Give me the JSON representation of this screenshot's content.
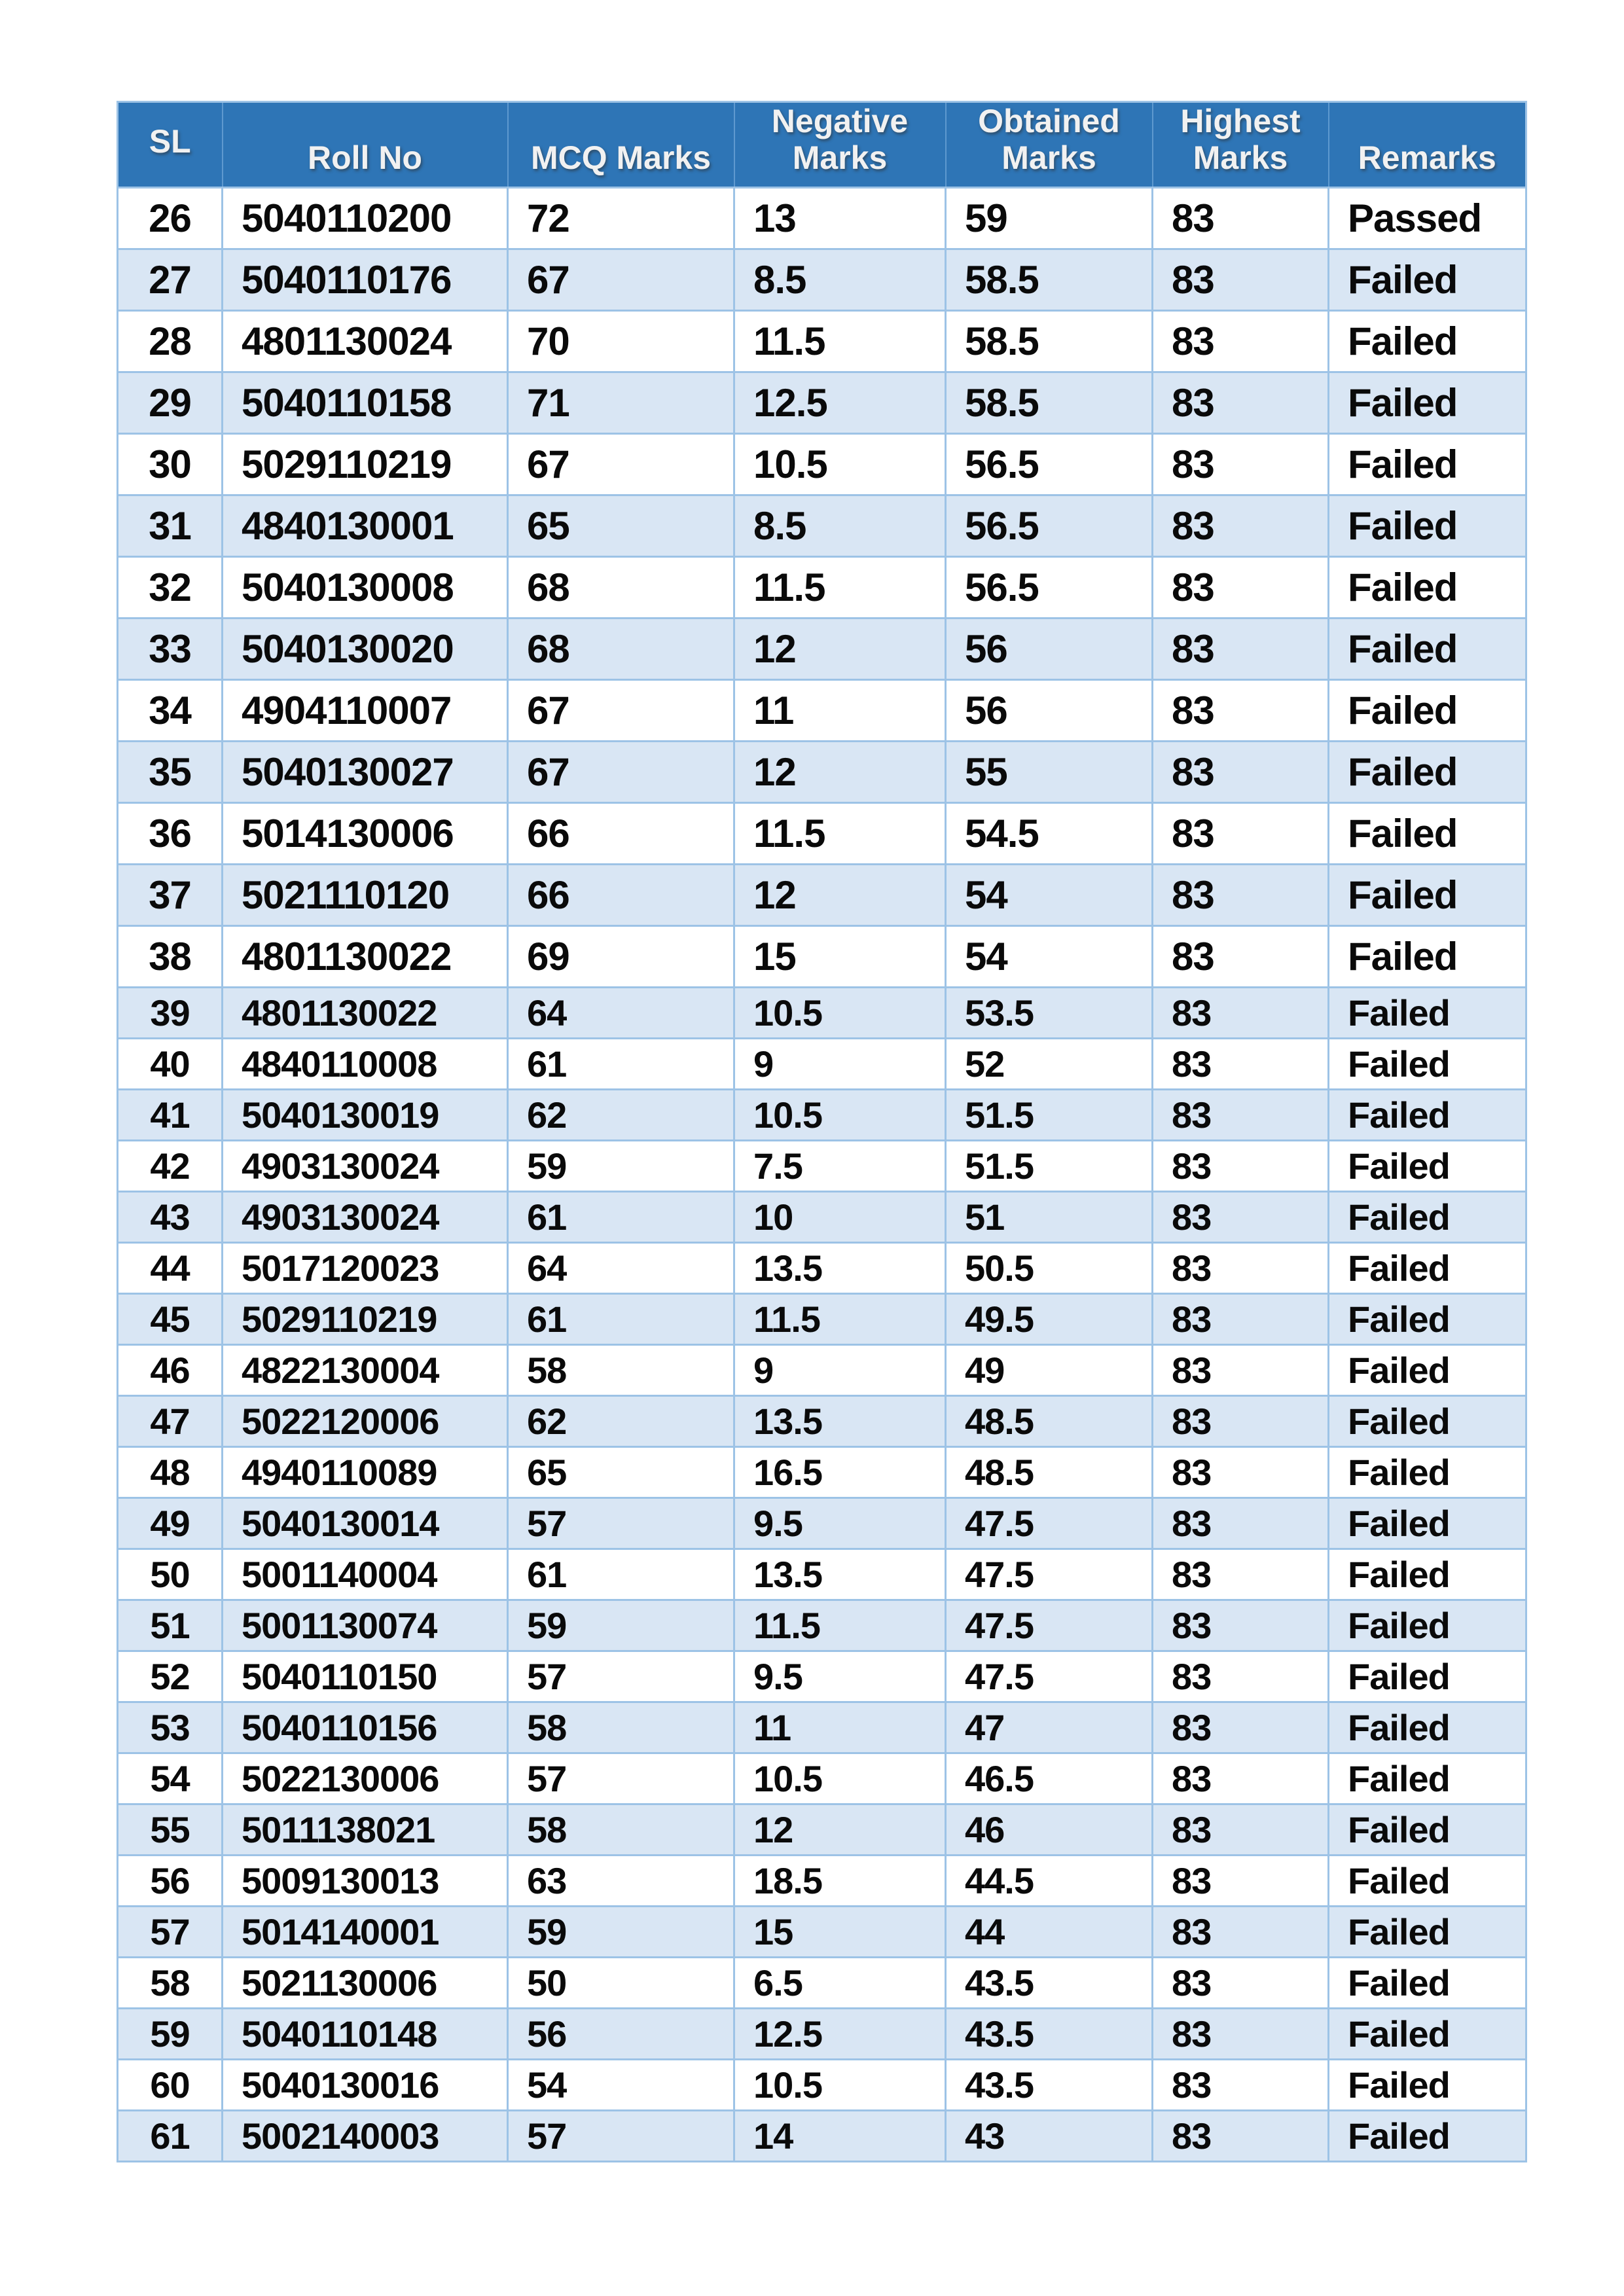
{
  "table": {
    "columns": [
      "SL",
      "Roll No",
      "MCQ Marks",
      "Negative Marks",
      "Obtained Marks",
      "Highest Marks",
      "Remarks"
    ],
    "rows": [
      {
        "sl": 26,
        "roll": "5040110200",
        "mcq": "72",
        "negative": "13",
        "obtained": "59",
        "highest": "83",
        "remark": "Passed"
      },
      {
        "sl": 27,
        "roll": "5040110176",
        "mcq": "67",
        "negative": "8.5",
        "obtained": "58.5",
        "highest": "83",
        "remark": "Failed"
      },
      {
        "sl": 28,
        "roll": "4801130024",
        "mcq": "70",
        "negative": "11.5",
        "obtained": "58.5",
        "highest": "83",
        "remark": "Failed"
      },
      {
        "sl": 29,
        "roll": "5040110158",
        "mcq": "71",
        "negative": "12.5",
        "obtained": "58.5",
        "highest": "83",
        "remark": "Failed"
      },
      {
        "sl": 30,
        "roll": "5029110219",
        "mcq": "67",
        "negative": "10.5",
        "obtained": "56.5",
        "highest": "83",
        "remark": "Failed"
      },
      {
        "sl": 31,
        "roll": "4840130001",
        "mcq": "65",
        "negative": "8.5",
        "obtained": "56.5",
        "highest": "83",
        "remark": "Failed"
      },
      {
        "sl": 32,
        "roll": "5040130008",
        "mcq": "68",
        "negative": "11.5",
        "obtained": "56.5",
        "highest": "83",
        "remark": "Failed"
      },
      {
        "sl": 33,
        "roll": "5040130020",
        "mcq": "68",
        "negative": "12",
        "obtained": "56",
        "highest": "83",
        "remark": "Failed"
      },
      {
        "sl": 34,
        "roll": "4904110007",
        "mcq": "67",
        "negative": "11",
        "obtained": "56",
        "highest": "83",
        "remark": "Failed"
      },
      {
        "sl": 35,
        "roll": "5040130027",
        "mcq": "67",
        "negative": "12",
        "obtained": "55",
        "highest": "83",
        "remark": "Failed"
      },
      {
        "sl": 36,
        "roll": "5014130006",
        "mcq": "66",
        "negative": "11.5",
        "obtained": "54.5",
        "highest": "83",
        "remark": "Failed"
      },
      {
        "sl": 37,
        "roll": "5021110120",
        "mcq": "66",
        "negative": "12",
        "obtained": "54",
        "highest": "83",
        "remark": "Failed"
      },
      {
        "sl": 38,
        "roll": "4801130022",
        "mcq": "69",
        "negative": "15",
        "obtained": "54",
        "highest": "83",
        "remark": "Failed"
      },
      {
        "sl": 39,
        "roll": "4801130022",
        "mcq": "64",
        "negative": "10.5",
        "obtained": "53.5",
        "highest": "83",
        "remark": "Failed"
      },
      {
        "sl": 40,
        "roll": "4840110008",
        "mcq": "61",
        "negative": "9",
        "obtained": "52",
        "highest": "83",
        "remark": "Failed"
      },
      {
        "sl": 41,
        "roll": "5040130019",
        "mcq": "62",
        "negative": "10.5",
        "obtained": "51.5",
        "highest": "83",
        "remark": "Failed"
      },
      {
        "sl": 42,
        "roll": "4903130024",
        "mcq": "59",
        "negative": "7.5",
        "obtained": "51.5",
        "highest": "83",
        "remark": "Failed"
      },
      {
        "sl": 43,
        "roll": "4903130024",
        "mcq": "61",
        "negative": "10",
        "obtained": "51",
        "highest": "83",
        "remark": "Failed"
      },
      {
        "sl": 44,
        "roll": "5017120023",
        "mcq": "64",
        "negative": "13.5",
        "obtained": "50.5",
        "highest": "83",
        "remark": "Failed"
      },
      {
        "sl": 45,
        "roll": "5029110219",
        "mcq": "61",
        "negative": "11.5",
        "obtained": "49.5",
        "highest": "83",
        "remark": "Failed"
      },
      {
        "sl": 46,
        "roll": "4822130004",
        "mcq": "58",
        "negative": "9",
        "obtained": "49",
        "highest": "83",
        "remark": "Failed"
      },
      {
        "sl": 47,
        "roll": "5022120006",
        "mcq": "62",
        "negative": "13.5",
        "obtained": "48.5",
        "highest": "83",
        "remark": "Failed"
      },
      {
        "sl": 48,
        "roll": "4940110089",
        "mcq": "65",
        "negative": "16.5",
        "obtained": "48.5",
        "highest": "83",
        "remark": "Failed"
      },
      {
        "sl": 49,
        "roll": "5040130014",
        "mcq": "57",
        "negative": "9.5",
        "obtained": "47.5",
        "highest": "83",
        "remark": "Failed"
      },
      {
        "sl": 50,
        "roll": "5001140004",
        "mcq": "61",
        "negative": "13.5",
        "obtained": "47.5",
        "highest": "83",
        "remark": "Failed"
      },
      {
        "sl": 51,
        "roll": "5001130074",
        "mcq": "59",
        "negative": "11.5",
        "obtained": "47.5",
        "highest": "83",
        "remark": "Failed"
      },
      {
        "sl": 52,
        "roll": "5040110150",
        "mcq": "57",
        "negative": "9.5",
        "obtained": "47.5",
        "highest": "83",
        "remark": "Failed"
      },
      {
        "sl": 53,
        "roll": "5040110156",
        "mcq": "58",
        "negative": "11",
        "obtained": "47",
        "highest": "83",
        "remark": "Failed"
      },
      {
        "sl": 54,
        "roll": "5022130006",
        "mcq": "57",
        "negative": "10.5",
        "obtained": "46.5",
        "highest": "83",
        "remark": "Failed"
      },
      {
        "sl": 55,
        "roll": "5011138021",
        "mcq": "58",
        "negative": "12",
        "obtained": "46",
        "highest": "83",
        "remark": "Failed"
      },
      {
        "sl": 56,
        "roll": "5009130013",
        "mcq": "63",
        "negative": "18.5",
        "obtained": "44.5",
        "highest": "83",
        "remark": "Failed"
      },
      {
        "sl": 57,
        "roll": "5014140001",
        "mcq": "59",
        "negative": "15",
        "obtained": "44",
        "highest": "83",
        "remark": "Failed"
      },
      {
        "sl": 58,
        "roll": "5021130006",
        "mcq": "50",
        "negative": "6.5",
        "obtained": "43.5",
        "highest": "83",
        "remark": "Failed"
      },
      {
        "sl": 59,
        "roll": "5040110148",
        "mcq": "56",
        "negative": "12.5",
        "obtained": "43.5",
        "highest": "83",
        "remark": "Failed"
      },
      {
        "sl": 60,
        "roll": "5040130016",
        "mcq": "54",
        "negative": "10.5",
        "obtained": "43.5",
        "highest": "83",
        "remark": "Failed"
      },
      {
        "sl": 61,
        "roll": "5002140003",
        "mcq": "57",
        "negative": "14",
        "obtained": "43",
        "highest": "83",
        "remark": "Failed"
      }
    ]
  },
  "colors": {
    "header_bg": "#2e75b6",
    "header_text": "#f1f1f1",
    "band_row_bg": "#d9e6f4",
    "border": "#9dc3e6",
    "data_text": "#0a0a0a"
  }
}
